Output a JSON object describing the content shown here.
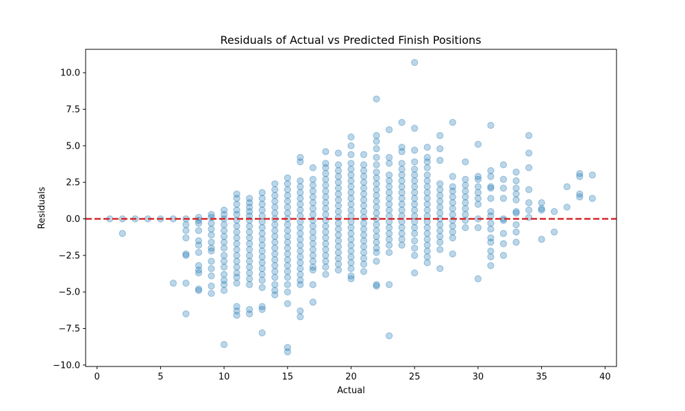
{
  "chart_data": {
    "type": "scatter",
    "title": "Residuals of Actual vs Predicted Finish Positions",
    "xlabel": "Actual",
    "ylabel": "Residuals",
    "xlim": [
      -0.9,
      40.9
    ],
    "ylim": [
      -10.1,
      11.6
    ],
    "xticks": [
      0,
      5,
      10,
      15,
      20,
      25,
      30,
      35,
      40
    ],
    "yticks": [
      -10.0,
      -7.5,
      -5.0,
      -2.5,
      0.0,
      2.5,
      5.0,
      7.5,
      10.0
    ],
    "grid": false,
    "marker_color": "#1f77b4",
    "marker_opacity": 0.3,
    "reference_line": {
      "y": 0,
      "color": "#d62728",
      "style": "dashed"
    },
    "series": [
      {
        "columns": [
          {
            "x": 1,
            "values": [
              0.0
            ]
          },
          {
            "x": 2,
            "values": [
              0.0,
              -1.0
            ]
          },
          {
            "x": 3,
            "values": [
              0.0
            ]
          },
          {
            "x": 4,
            "values": [
              0.0
            ]
          },
          {
            "x": 5,
            "values": [
              0.0
            ]
          },
          {
            "x": 6,
            "values": [
              0.0,
              -4.4
            ]
          },
          {
            "x": 7,
            "values": [
              0.0,
              -0.4,
              -0.8,
              -1.3,
              -2.4,
              -2.5,
              -4.4,
              -6.5
            ]
          },
          {
            "x": 8,
            "values": [
              0.1,
              -0.1,
              -0.3,
              -0.8,
              -1.5,
              -1.8,
              -2.3,
              -3.2,
              -3.5,
              -3.7,
              -4.8,
              -4.9
            ]
          },
          {
            "x": 9,
            "values": [
              0.3,
              0.1,
              -0.3,
              -0.7,
              -1.1,
              -1.6,
              -2.0,
              -2.2,
              -2.9,
              -3.4,
              -3.9,
              -4.6,
              -5.1
            ]
          },
          {
            "x": 10,
            "values": [
              0.6,
              0.3,
              0.0,
              -0.4,
              -0.8,
              -1.2,
              -1.6,
              -2.0,
              -2.5,
              -2.9,
              -3.3,
              -3.8,
              -4.2,
              -4.5,
              -4.9,
              -8.6
            ]
          },
          {
            "x": 11,
            "values": [
              1.7,
              1.4,
              1.0,
              0.6,
              0.3,
              -0.1,
              -0.5,
              -0.9,
              -1.3,
              -1.7,
              -2.1,
              -2.5,
              -2.9,
              -3.3,
              -3.7,
              -4.0,
              -4.4,
              -6.0,
              -6.3,
              -6.6
            ]
          },
          {
            "x": 12,
            "values": [
              1.4,
              1.1,
              0.8,
              0.5,
              0.2,
              -0.1,
              -0.5,
              -0.9,
              -1.3,
              -1.7,
              -2.1,
              -2.5,
              -2.9,
              -3.3,
              -3.7,
              -4.1,
              -4.5,
              -6.2,
              -6.5
            ]
          },
          {
            "x": 13,
            "values": [
              1.8,
              1.4,
              1.0,
              0.6,
              0.2,
              -0.2,
              -0.6,
              -1.0,
              -1.4,
              -1.8,
              -2.2,
              -2.6,
              -3.0,
              -3.4,
              -3.8,
              -4.2,
              -4.7,
              -6.0,
              -6.2,
              -7.8
            ]
          },
          {
            "x": 14,
            "values": [
              2.4,
              2.0,
              1.6,
              1.2,
              0.8,
              0.4,
              0.0,
              -0.4,
              -0.8,
              -1.2,
              -1.6,
              -2.0,
              -2.4,
              -2.8,
              -3.2,
              -3.6,
              -4.0,
              -4.5,
              -4.9,
              -5.2
            ]
          },
          {
            "x": 15,
            "values": [
              2.8,
              2.4,
              2.0,
              1.6,
              1.2,
              0.8,
              0.4,
              0.0,
              -0.4,
              -0.8,
              -1.2,
              -1.6,
              -2.0,
              -2.4,
              -2.8,
              -3.2,
              -3.6,
              -4.0,
              -4.5,
              -5.0,
              -5.8,
              -8.8,
              -9.1
            ]
          },
          {
            "x": 16,
            "values": [
              4.2,
              3.9,
              2.6,
              2.2,
              1.8,
              1.4,
              1.0,
              0.6,
              0.2,
              -0.2,
              -0.6,
              -1.0,
              -1.4,
              -1.8,
              -2.2,
              -2.6,
              -3.0,
              -3.4,
              -3.8,
              -4.2,
              -4.5,
              -6.3,
              -6.7
            ]
          },
          {
            "x": 17,
            "values": [
              3.5,
              2.7,
              2.3,
              1.9,
              1.5,
              1.1,
              0.7,
              0.3,
              -0.1,
              -0.5,
              -0.9,
              -1.3,
              -1.7,
              -2.1,
              -2.5,
              -2.9,
              -3.3,
              -3.5,
              -4.5,
              -5.7
            ]
          },
          {
            "x": 18,
            "values": [
              4.6,
              3.8,
              3.5,
              3.1,
              2.7,
              2.3,
              1.9,
              1.5,
              1.1,
              0.7,
              0.3,
              -0.1,
              -0.5,
              -0.9,
              -1.3,
              -1.7,
              -2.1,
              -2.5,
              -2.9,
              -3.3,
              -3.8
            ]
          },
          {
            "x": 19,
            "values": [
              4.5,
              3.7,
              3.3,
              2.9,
              2.5,
              2.1,
              1.7,
              1.3,
              0.9,
              0.5,
              0.1,
              -0.3,
              -0.7,
              -1.1,
              -1.5,
              -1.9,
              -2.3,
              -2.7,
              -3.1,
              -3.5
            ]
          },
          {
            "x": 20,
            "values": [
              5.6,
              5.0,
              4.4,
              3.8,
              3.4,
              3.0,
              2.6,
              2.2,
              1.8,
              1.4,
              1.0,
              0.6,
              0.2,
              -0.2,
              -0.6,
              -1.0,
              -1.4,
              -1.8,
              -2.2,
              -2.6,
              -3.0,
              -3.4,
              -3.9,
              -4.1
            ]
          },
          {
            "x": 21,
            "values": [
              4.4,
              3.7,
              3.3,
              2.9,
              2.5,
              2.1,
              1.7,
              1.3,
              0.9,
              0.5,
              0.1,
              -0.3,
              -0.7,
              -1.1,
              -1.5,
              -1.9,
              -2.3,
              -2.7,
              -3.1,
              -3.6
            ]
          },
          {
            "x": 22,
            "values": [
              8.2,
              5.7,
              5.3,
              4.8,
              4.2,
              3.7,
              3.2,
              2.8,
              2.4,
              2.0,
              1.6,
              1.2,
              0.8,
              0.4,
              0.0,
              -0.4,
              -0.8,
              -1.2,
              -1.6,
              -2.0,
              -2.3,
              -2.9,
              -4.5,
              -4.6
            ]
          },
          {
            "x": 23,
            "values": [
              6.1,
              4.2,
              3.8,
              3.0,
              2.6,
              2.2,
              1.8,
              1.4,
              1.0,
              0.6,
              0.2,
              -0.2,
              -0.6,
              -1.0,
              -1.4,
              -1.8,
              -2.3,
              -4.5,
              -8.0
            ]
          },
          {
            "x": 24,
            "values": [
              6.6,
              4.9,
              4.6,
              3.8,
              3.4,
              3.0,
              2.6,
              2.2,
              1.8,
              1.4,
              1.0,
              0.6,
              0.2,
              -0.2,
              -0.6,
              -1.0,
              -1.4,
              -1.8
            ]
          },
          {
            "x": 25,
            "values": [
              10.7,
              6.2,
              4.7,
              3.9,
              3.4,
              3.0,
              2.6,
              2.2,
              1.8,
              1.4,
              1.0,
              0.6,
              0.2,
              -0.2,
              -0.6,
              -1.0,
              -1.5,
              -2.0,
              -2.5,
              -3.7
            ]
          },
          {
            "x": 26,
            "values": [
              4.9,
              4.2,
              3.9,
              3.5,
              3.0,
              2.6,
              2.2,
              1.8,
              1.4,
              1.0,
              0.6,
              0.2,
              -0.2,
              -0.6,
              -1.0,
              -1.4,
              -1.8,
              -2.2,
              -2.6,
              -3.0
            ]
          },
          {
            "x": 27,
            "values": [
              5.7,
              4.8,
              4.0,
              2.4,
              2.0,
              1.6,
              1.2,
              0.8,
              0.4,
              0.0,
              -0.4,
              -0.8,
              -1.2,
              -1.6,
              -2.1,
              -3.4
            ]
          },
          {
            "x": 28,
            "values": [
              6.6,
              2.9,
              2.2,
              1.9,
              1.5,
              1.1,
              0.7,
              0.3,
              -0.1,
              -0.5,
              -0.9,
              -1.3,
              -2.4
            ]
          },
          {
            "x": 29,
            "values": [
              3.9,
              2.7,
              2.3,
              1.9,
              1.5,
              1.1,
              0.7,
              0.3,
              -0.1,
              -0.6
            ]
          },
          {
            "x": 30,
            "values": [
              5.1,
              2.9,
              2.7,
              2.2,
              1.8,
              1.4,
              1.0,
              0.0,
              -0.6,
              -4.1
            ]
          },
          {
            "x": 31,
            "values": [
              6.4,
              3.3,
              2.9,
              2.2,
              2.1,
              1.4,
              0.5,
              0.2,
              -0.3,
              -0.7,
              -1.3,
              -1.6,
              -2.2,
              -2.6,
              -3.2
            ]
          },
          {
            "x": 32,
            "values": [
              3.7,
              2.7,
              2.1,
              1.4,
              0.0,
              -0.1,
              -1.0,
              -1.7,
              -2.5
            ]
          },
          {
            "x": 33,
            "values": [
              3.2,
              2.6,
              2.1,
              1.7,
              1.3,
              0.5,
              0.4,
              -0.4,
              -0.9,
              -1.6
            ]
          },
          {
            "x": 34,
            "values": [
              5.7,
              4.5,
              3.5,
              2.0,
              1.1,
              0.6,
              0.1
            ]
          },
          {
            "x": 35,
            "values": [
              1.1,
              0.7,
              0.6,
              -1.4
            ]
          },
          {
            "x": 36,
            "values": [
              0.5,
              -0.9
            ]
          },
          {
            "x": 37,
            "values": [
              2.2,
              0.8
            ]
          },
          {
            "x": 38,
            "values": [
              3.1,
              2.9,
              1.7,
              1.5
            ]
          },
          {
            "x": 39,
            "values": [
              3.0,
              1.4
            ]
          }
        ]
      }
    ]
  }
}
